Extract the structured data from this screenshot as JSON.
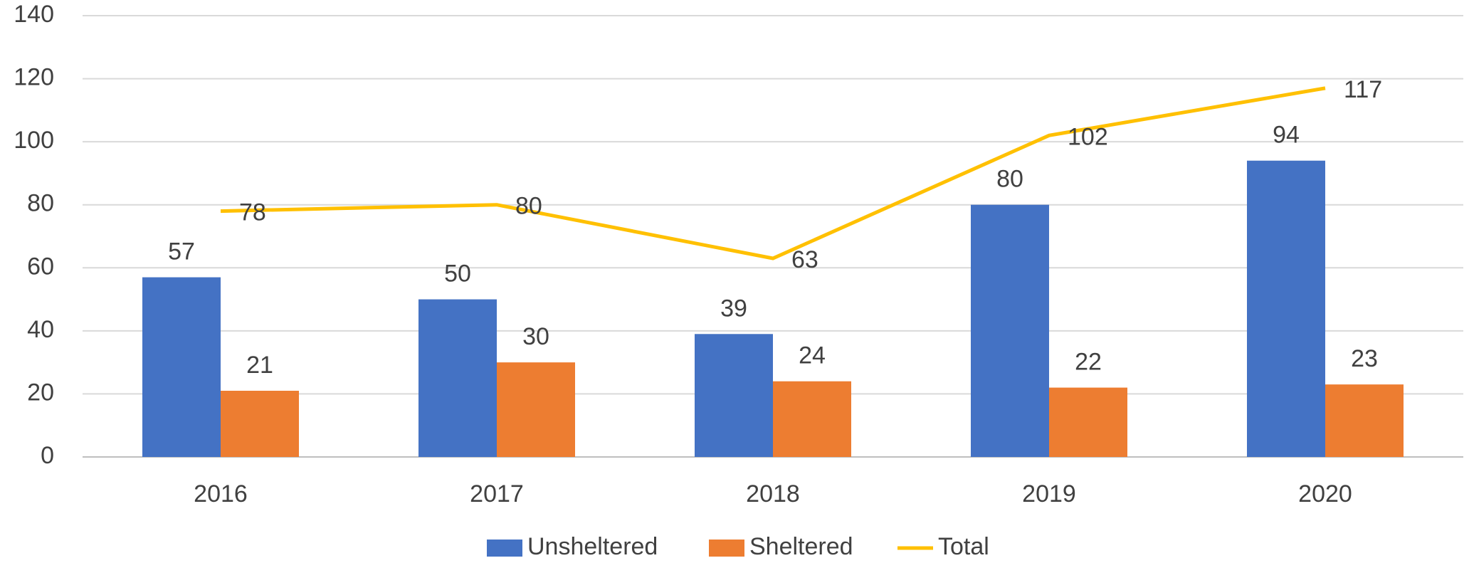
{
  "chart_data": {
    "type": "bar",
    "categories": [
      "2016",
      "2017",
      "2018",
      "2019",
      "2020"
    ],
    "series": [
      {
        "name": "Unsheltered",
        "type": "bar",
        "color": "#4472c4",
        "values": [
          57,
          50,
          39,
          80,
          94
        ]
      },
      {
        "name": "Sheltered",
        "type": "bar",
        "color": "#ed7d31",
        "values": [
          21,
          30,
          24,
          22,
          23
        ]
      },
      {
        "name": "Total",
        "type": "line",
        "color": "#ffc000",
        "values": [
          78,
          80,
          63,
          102,
          117
        ]
      }
    ],
    "ylim": [
      0,
      140
    ],
    "yticks": [
      0,
      20,
      40,
      60,
      80,
      100,
      120,
      140
    ],
    "grid": true,
    "legend": "bottom"
  }
}
